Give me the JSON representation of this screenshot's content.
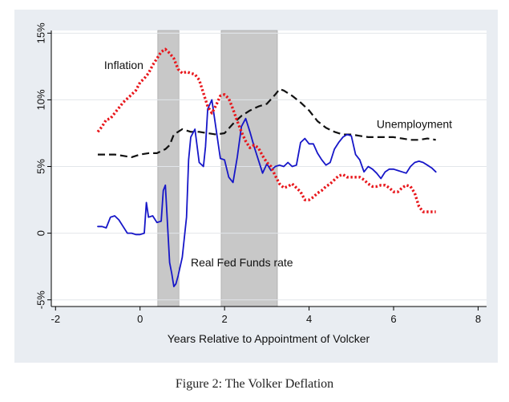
{
  "caption": "Figure 2: The Volker Deflation",
  "chart_data": {
    "type": "line",
    "title": "",
    "xlabel": "Years Relative to Appointment of Volcker",
    "ylabel": "",
    "xlim": [
      -2.1,
      8.2
    ],
    "ylim": [
      -5.5,
      15.2
    ],
    "x_ticks": [
      -2,
      0,
      2,
      4,
      6,
      8
    ],
    "x_tick_labels": [
      "-2",
      "0",
      "2",
      "4",
      "6",
      "8"
    ],
    "y_ticks": [
      -5,
      0,
      5,
      10,
      15
    ],
    "y_tick_labels": [
      "-5%",
      "0",
      "5%",
      "10%",
      "15%"
    ],
    "grid": true,
    "shaded_regions": [
      {
        "x0": 0.42,
        "x1": 0.92
      },
      {
        "x0": 1.92,
        "x1": 3.25
      }
    ],
    "series": [
      {
        "name": "Inflation",
        "label_at": {
          "x": -0.85,
          "y": 12.3
        },
        "style": "dotted",
        "color": "#e8161b",
        "x": [
          -1.0,
          -0.9,
          -0.8,
          -0.7,
          -0.6,
          -0.5,
          -0.4,
          -0.3,
          -0.2,
          -0.1,
          0.0,
          0.1,
          0.2,
          0.3,
          0.4,
          0.5,
          0.6,
          0.7,
          0.8,
          0.9,
          1.0,
          1.1,
          1.2,
          1.3,
          1.4,
          1.5,
          1.6,
          1.7,
          1.8,
          1.9,
          2.0,
          2.1,
          2.2,
          2.3,
          2.4,
          2.5,
          2.6,
          2.7,
          2.8,
          2.9,
          3.0,
          3.1,
          3.2,
          3.3,
          3.4,
          3.5,
          3.6,
          3.7,
          3.8,
          3.9,
          4.0,
          4.1,
          4.2,
          4.3,
          4.4,
          4.5,
          4.6,
          4.7,
          4.8,
          4.9,
          5.0,
          5.1,
          5.2,
          5.3,
          5.4,
          5.5,
          5.6,
          5.7,
          5.8,
          5.9,
          6.0,
          6.1,
          6.2,
          6.3,
          6.4,
          6.5,
          6.6,
          6.7,
          6.8,
          6.9,
          7.0
        ],
        "y": [
          7.6,
          8.0,
          8.5,
          8.6,
          9.0,
          9.4,
          9.8,
          10.1,
          10.4,
          10.7,
          11.3,
          11.6,
          12.0,
          12.6,
          13.1,
          13.6,
          13.8,
          13.5,
          13.1,
          12.3,
          12.0,
          12.1,
          12.0,
          11.9,
          11.5,
          10.5,
          9.5,
          9.0,
          9.6,
          10.3,
          10.4,
          10.1,
          9.3,
          8.4,
          7.6,
          6.9,
          6.4,
          6.6,
          6.4,
          5.8,
          5.3,
          5.0,
          4.3,
          3.7,
          3.4,
          3.5,
          3.7,
          3.4,
          3.1,
          2.5,
          2.5,
          2.7,
          3.0,
          3.2,
          3.5,
          3.7,
          4.0,
          4.3,
          4.4,
          4.2,
          4.2,
          4.2,
          4.2,
          4.0,
          3.7,
          3.5,
          3.5,
          3.6,
          3.6,
          3.4,
          3.1,
          3.1,
          3.4,
          3.6,
          3.5,
          3.0,
          2.0,
          1.6,
          1.6,
          1.6,
          1.6
        ]
      },
      {
        "name": "Unemployment",
        "label_at": {
          "x": 5.6,
          "y": 7.9
        },
        "style": "dashed",
        "color": "#111111",
        "x": [
          -1.0,
          -0.8,
          -0.6,
          -0.4,
          -0.2,
          0.0,
          0.2,
          0.4,
          0.6,
          0.7,
          0.8,
          1.0,
          1.2,
          1.4,
          1.6,
          1.8,
          2.0,
          2.2,
          2.4,
          2.6,
          2.8,
          3.0,
          3.2,
          3.3,
          3.4,
          3.6,
          3.8,
          4.0,
          4.2,
          4.4,
          4.6,
          4.8,
          5.0,
          5.2,
          5.4,
          5.6,
          5.8,
          6.0,
          6.2,
          6.4,
          6.6,
          6.8,
          7.0
        ],
        "y": [
          5.9,
          5.9,
          5.9,
          5.8,
          5.7,
          5.9,
          6.0,
          6.0,
          6.3,
          6.6,
          7.4,
          7.8,
          7.6,
          7.6,
          7.5,
          7.4,
          7.5,
          8.2,
          8.8,
          9.2,
          9.5,
          9.7,
          10.4,
          10.8,
          10.7,
          10.3,
          9.8,
          9.2,
          8.4,
          7.9,
          7.6,
          7.4,
          7.4,
          7.3,
          7.2,
          7.2,
          7.2,
          7.2,
          7.1,
          7.0,
          7.0,
          7.1,
          7.0
        ]
      },
      {
        "name": "Real Fed Funds rate",
        "label_at": {
          "x": 1.2,
          "y": -2.5
        },
        "style": "solid",
        "color": "#1616c8",
        "x": [
          -1.0,
          -0.9,
          -0.8,
          -0.7,
          -0.6,
          -0.5,
          -0.4,
          -0.3,
          -0.2,
          -0.1,
          0.0,
          0.1,
          0.15,
          0.2,
          0.3,
          0.4,
          0.5,
          0.55,
          0.6,
          0.7,
          0.75,
          0.8,
          0.85,
          0.9,
          1.0,
          1.1,
          1.15,
          1.2,
          1.3,
          1.4,
          1.5,
          1.55,
          1.6,
          1.7,
          1.8,
          1.9,
          2.0,
          2.1,
          2.2,
          2.3,
          2.4,
          2.5,
          2.6,
          2.7,
          2.8,
          2.9,
          3.0,
          3.1,
          3.2,
          3.3,
          3.4,
          3.5,
          3.6,
          3.7,
          3.8,
          3.9,
          4.0,
          4.1,
          4.2,
          4.3,
          4.4,
          4.5,
          4.6,
          4.7,
          4.8,
          4.9,
          5.0,
          5.1,
          5.2,
          5.3,
          5.4,
          5.5,
          5.6,
          5.7,
          5.8,
          5.9,
          6.0,
          6.1,
          6.2,
          6.3,
          6.4,
          6.5,
          6.6,
          6.7,
          6.8,
          6.9,
          7.0
        ],
        "y": [
          0.5,
          0.5,
          0.4,
          1.2,
          1.3,
          1.0,
          0.5,
          0.0,
          0.0,
          -0.1,
          -0.1,
          0.0,
          2.3,
          1.2,
          1.3,
          0.8,
          0.9,
          3.2,
          3.6,
          -2.2,
          -3.0,
          -4.0,
          -3.8,
          -3.2,
          -1.8,
          1.2,
          5.5,
          7.2,
          7.8,
          5.3,
          5.0,
          6.5,
          9.3,
          10.0,
          7.8,
          5.6,
          5.5,
          4.2,
          3.8,
          5.7,
          8.0,
          8.6,
          7.6,
          6.5,
          5.5,
          4.5,
          5.2,
          4.7,
          5.0,
          5.1,
          5.0,
          5.3,
          5.0,
          5.1,
          6.8,
          7.1,
          6.7,
          6.7,
          6.0,
          5.5,
          5.1,
          5.3,
          6.3,
          6.8,
          7.2,
          7.4,
          7.3,
          5.9,
          5.5,
          4.6,
          5.0,
          4.8,
          4.5,
          4.1,
          4.6,
          4.8,
          4.8,
          4.7,
          4.6,
          4.5,
          5.0,
          5.3,
          5.4,
          5.3,
          5.1,
          4.9,
          4.6
        ]
      }
    ]
  }
}
